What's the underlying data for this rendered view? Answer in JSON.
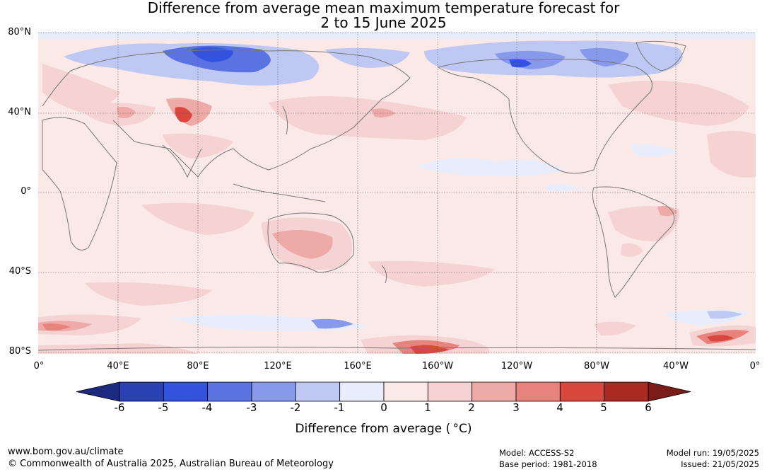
{
  "title": {
    "line1": "Difference from average mean maximum temperature forecast for",
    "line2": "2 to 15 June 2025"
  },
  "map": {
    "lat_labels": [
      "80°N",
      "40°N",
      "0°",
      "40°S",
      "80°S"
    ],
    "lon_labels": [
      "0°",
      "40°E",
      "80°E",
      "120°E",
      "160°E",
      "160°W",
      "120°W",
      "80°W",
      "40°W",
      "0°"
    ],
    "gridline_style": "dotted",
    "coastline_color": "#777777"
  },
  "colorbar": {
    "ticks": [
      "-6",
      "-5",
      "-4",
      "-3",
      "-2",
      "-1",
      "0",
      "1",
      "2",
      "3",
      "4",
      "5",
      "6"
    ],
    "colors": [
      "#1c2a80",
      "#2a40b5",
      "#3452e0",
      "#5b72e3",
      "#8699ea",
      "#bec8f2",
      "#e9edfb",
      "#fbe9e8",
      "#f4d3d2",
      "#eeaaa7",
      "#e7827c",
      "#d9473f",
      "#ab2b23",
      "#7a1c17"
    ],
    "label": "Difference from average ( °C)"
  },
  "footer": {
    "website": "www.bom.gov.au/climate",
    "copyright": "© Commonwealth of Australia 2025, Australian Bureau of Meteorology",
    "model": "Model: ACCESS-S2",
    "base_period": "Base period: 1981-2018",
    "model_run": "Model run: 19/05/2025",
    "issued": "Issued: 21/05/2025"
  }
}
